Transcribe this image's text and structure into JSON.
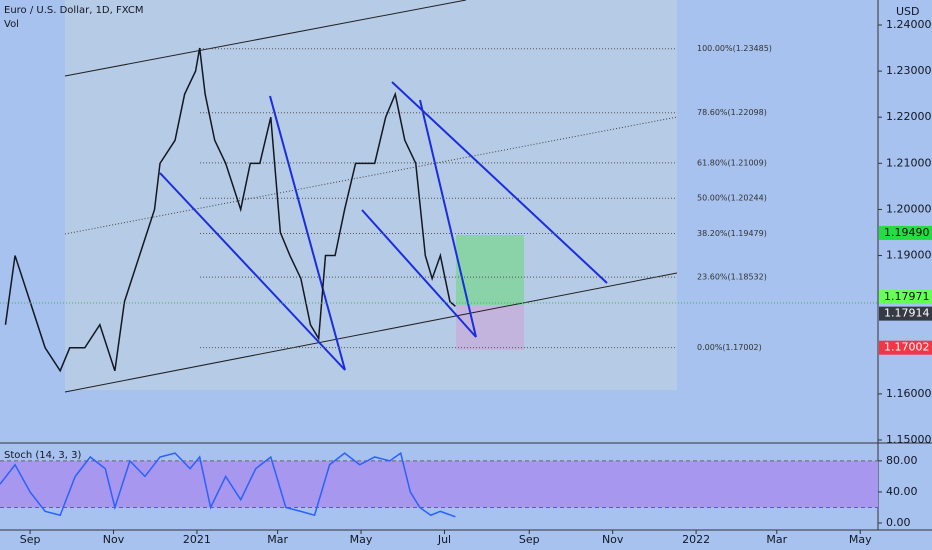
{
  "chart_data": [
    {
      "type": "line",
      "title": "Euro / U.S. Dollar, 1D, FXCM",
      "subtitle": "Vol",
      "y_axis_label": "USD",
      "color": "#131722",
      "x": [
        -18,
        -11,
        0,
        11,
        22,
        29,
        40,
        51,
        62,
        69,
        80,
        91,
        95,
        106,
        113,
        121,
        124,
        128,
        135,
        143,
        154,
        161,
        168,
        176,
        183,
        190,
        198,
        205,
        211,
        216,
        223,
        230,
        238,
        245,
        252,
        260,
        267,
        274,
        282,
        289,
        294,
        300,
        307,
        311
      ],
      "values": [
        1.175,
        1.19,
        1.18,
        1.17,
        1.165,
        1.17,
        1.17,
        1.175,
        1.165,
        1.18,
        1.19,
        1.2,
        1.21,
        1.215,
        1.225,
        1.23,
        1.235,
        1.225,
        1.215,
        1.21,
        1.2,
        1.21,
        1.21,
        1.22,
        1.195,
        1.19,
        1.185,
        1.175,
        1.172,
        1.19,
        1.19,
        1.2,
        1.21,
        1.21,
        1.21,
        1.22,
        1.225,
        1.215,
        1.21,
        1.19,
        1.185,
        1.19,
        1.18,
        1.179
      ],
      "xlim": [
        -22,
        620
      ],
      "xticks": [
        {
          "value": 0,
          "label": "Sep"
        },
        {
          "value": 61,
          "label": "Nov"
        },
        {
          "value": 122,
          "label": "2021"
        },
        {
          "value": 181,
          "label": "Mar"
        },
        {
          "value": 242,
          "label": "May"
        },
        {
          "value": 303,
          "label": "Jul"
        },
        {
          "value": 365,
          "label": "Sep"
        },
        {
          "value": 426,
          "label": "Nov"
        },
        {
          "value": 487,
          "label": "2022"
        },
        {
          "value": 546,
          "label": "Mar"
        },
        {
          "value": 607,
          "label": "May"
        }
      ],
      "ylim": [
        1.15,
        1.24542
      ],
      "yticks": [
        {
          "value": 1.15,
          "label": "1.15000"
        },
        {
          "value": 1.16,
          "label": "1.16000"
        },
        {
          "value": 1.19,
          "label": "1.19000"
        },
        {
          "value": 1.2,
          "label": "1.20000"
        },
        {
          "value": 1.21,
          "label": "1.21000"
        },
        {
          "value": 1.22,
          "label": "1.22000"
        },
        {
          "value": 1.23,
          "label": "1.23000"
        },
        {
          "value": 1.24,
          "label": "1.24000"
        }
      ],
      "fib_levels": [
        {
          "value": 1.23485,
          "label": "100.00%(1.23485)"
        },
        {
          "value": 1.22098,
          "label": "78.60%(1.22098)"
        },
        {
          "value": 1.21009,
          "label": "61.80%(1.21009)"
        },
        {
          "value": 1.20244,
          "label": "50.00%(1.20244)"
        },
        {
          "value": 1.19479,
          "label": "38.20%(1.19479)"
        },
        {
          "value": 1.18532,
          "label": "23.60%(1.18532)"
        },
        {
          "value": 1.17002,
          "label": "0.00%(1.17002)"
        }
      ],
      "price_tags": [
        {
          "value": 1.1949,
          "label": "1.19490",
          "color": "#22dd44"
        },
        {
          "value": 1.17971,
          "label": "1.17971",
          "color": "#66ff55"
        },
        {
          "value": 1.17914,
          "label": "1.17914",
          "color": "#363a45"
        },
        {
          "value": 1.17002,
          "label": "1.17002",
          "color": "#f23645"
        }
      ]
    },
    {
      "type": "line",
      "title": "Stoch (14, 3, 3)",
      "color": "#2962ff",
      "x": [
        -22,
        -11,
        0,
        11,
        22,
        33,
        44,
        55,
        62,
        73,
        84,
        95,
        106,
        117,
        124,
        132,
        143,
        154,
        165,
        176,
        187,
        198,
        208,
        219,
        230,
        241,
        252,
        263,
        271,
        278,
        285,
        293,
        300,
        311
      ],
      "values": [
        50,
        75,
        40,
        15,
        10,
        60,
        85,
        70,
        20,
        80,
        60,
        85,
        90,
        70,
        85,
        20,
        60,
        30,
        70,
        85,
        20,
        15,
        10,
        75,
        90,
        75,
        85,
        80,
        90,
        40,
        20,
        10,
        15,
        8
      ],
      "xlim": [
        -22,
        620
      ],
      "ylim": [
        -9,
        103
      ],
      "band": [
        20,
        80
      ],
      "yticks": [
        {
          "value": 80,
          "label": "80.00"
        },
        {
          "value": 40,
          "label": "40.00"
        },
        {
          "value": 0,
          "label": "0.00"
        }
      ]
    }
  ]
}
